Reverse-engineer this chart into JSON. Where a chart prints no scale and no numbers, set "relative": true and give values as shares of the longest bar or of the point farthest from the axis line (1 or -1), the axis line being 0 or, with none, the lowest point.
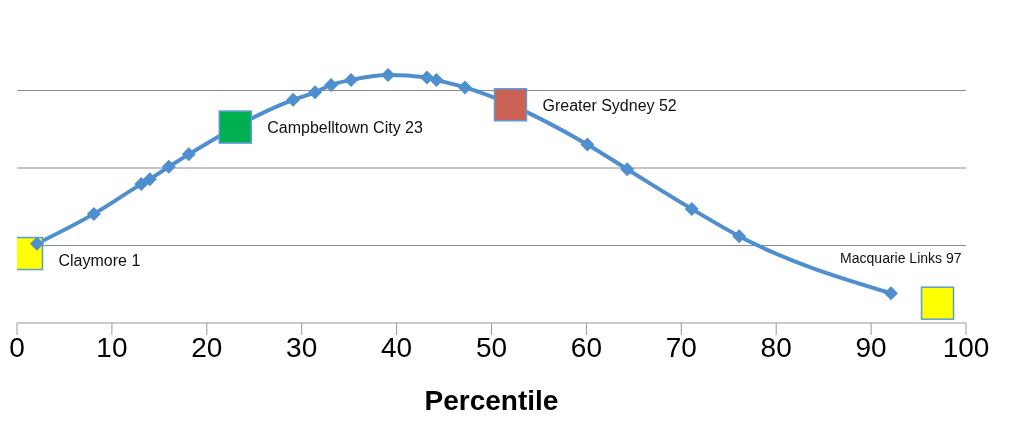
{
  "chart_data": {
    "type": "line",
    "relative": true,
    "xlabel": "Percentile",
    "xlim": [
      0,
      100
    ],
    "xticks": [
      0,
      10,
      20,
      30,
      40,
      50,
      60,
      70,
      80,
      90,
      100
    ],
    "grid": "y",
    "tick_labels": "x",
    "series": [
      {
        "color": "#4f8fcf",
        "marker": "diamond",
        "x": [
          2.1,
          8.1,
          13.1,
          14,
          16,
          18.1,
          29.1,
          31.4,
          33.1,
          35.2,
          39.1,
          43.2,
          44.2,
          47.2,
          60.1,
          64.3,
          71.1,
          76.1,
          92.1
        ],
        "values": [
          0.32,
          0.44,
          0.56,
          0.58,
          0.63,
          0.68,
          0.9,
          0.93,
          0.96,
          0.98,
          1,
          0.99,
          0.98,
          0.95,
          0.72,
          0.62,
          0.46,
          0.35,
          0.12
        ]
      },
      {
        "type": "scatter",
        "marker": "square",
        "x": [
          1,
          23,
          52,
          97
        ],
        "values": [
          0.28,
          0.79,
          0.88,
          0.08
        ],
        "colors": [
          "#ffff00",
          "#00b050",
          "#cc6155",
          "#ffff00"
        ]
      }
    ],
    "annotations": [
      {
        "text": "Claymore 1",
        "x": 1,
        "y": 0.28
      },
      {
        "text": "Campbelltown City 23",
        "x": 23,
        "y": 0.79
      },
      {
        "text": "Greater Sydney 52",
        "x": 52,
        "y": 0.88
      },
      {
        "text": "Macquarie Links 97",
        "x": 97,
        "y": 0.08
      }
    ]
  }
}
